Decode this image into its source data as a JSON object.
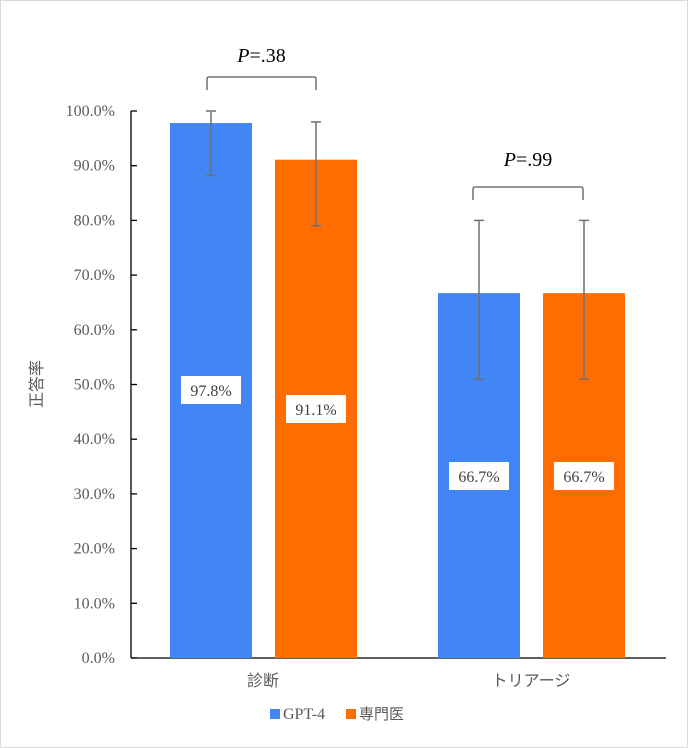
{
  "chart_data": {
    "type": "bar",
    "title": "",
    "xlabel": "",
    "ylabel": "正答率",
    "ylim": [
      0,
      100
    ],
    "yticks": [
      "0.0%",
      "10.0%",
      "20.0%",
      "30.0%",
      "40.0%",
      "50.0%",
      "60.0%",
      "70.0%",
      "80.0%",
      "90.0%",
      "100.0%"
    ],
    "categories": [
      "診断",
      "トリアージ"
    ],
    "series": [
      {
        "name": "GPT-4",
        "color": "#4285F4",
        "values": [
          97.8,
          66.7
        ],
        "labels": [
          "97.8%",
          "66.7%"
        ],
        "error_low": [
          88.2,
          51.0
        ],
        "error_high": [
          100.0,
          80.0
        ]
      },
      {
        "name": "専門医",
        "color": "#FF6D01",
        "values": [
          91.1,
          66.7
        ],
        "labels": [
          "91.1%",
          "66.7%"
        ],
        "error_low": [
          79.0,
          51.0
        ],
        "error_high": [
          98.0,
          80.0
        ]
      }
    ],
    "annotations": [
      {
        "category": "診断",
        "text_italic": "P",
        "text": "=.38"
      },
      {
        "category": "トリアージ",
        "text_italic": "P",
        "text": "=.99"
      }
    ],
    "grid": false,
    "legend_position": "bottom"
  }
}
